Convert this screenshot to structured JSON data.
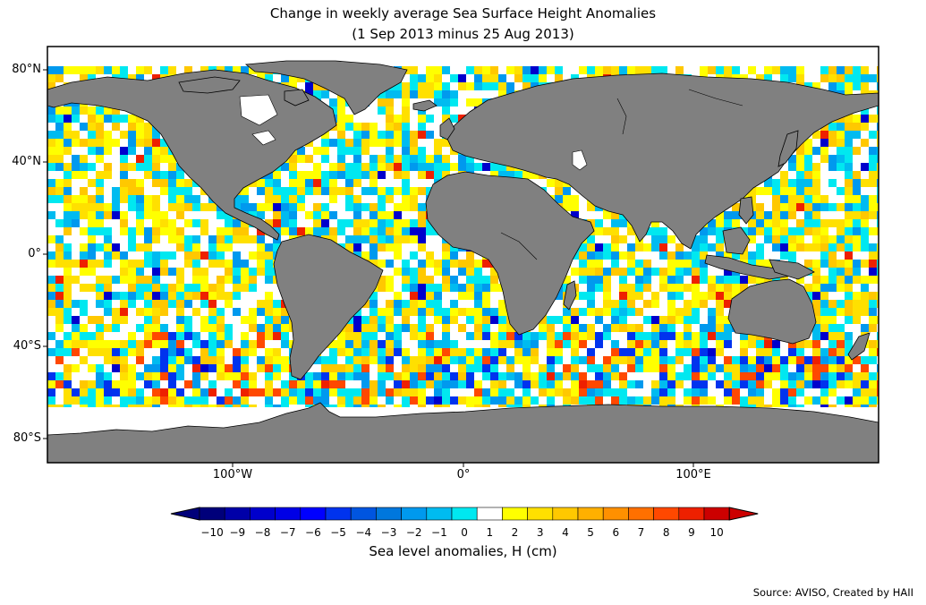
{
  "title": "Change in weekly average Sea Surface Height Anomalies",
  "subtitle": "(1 Sep 2013 minus 25 Aug 2013)",
  "lat_labels": [
    "80°N",
    "40°N",
    "0°",
    "40°S",
    "80°S"
  ],
  "lon_labels": [
    "100°W",
    "0°",
    "100°E"
  ],
  "colorbar": {
    "label": "Sea level anomalies, H (cm)",
    "ticks": [
      "−10",
      "−9",
      "−8",
      "−7",
      "−6",
      "−5",
      "−4",
      "−3",
      "−2",
      "−1",
      "0",
      "1",
      "2",
      "3",
      "4",
      "5",
      "6",
      "7",
      "8",
      "9",
      "10"
    ],
    "colors": [
      "#00007a",
      "#0000a8",
      "#0000cc",
      "#0000e6",
      "#0000ff",
      "#0033ee",
      "#0055e0",
      "#0077dd",
      "#0099ee",
      "#00bbf0",
      "#00e8f0",
      "#ffffff",
      "#ffff00",
      "#ffe000",
      "#ffc800",
      "#ffb000",
      "#ff9000",
      "#ff7000",
      "#ff4800",
      "#ee2000",
      "#cc0000"
    ]
  },
  "colors": {
    "land": "#808080",
    "no_data": "#ffffff",
    "frame": "#000000"
  },
  "source": "Source: AVISO, Created by HAII"
}
